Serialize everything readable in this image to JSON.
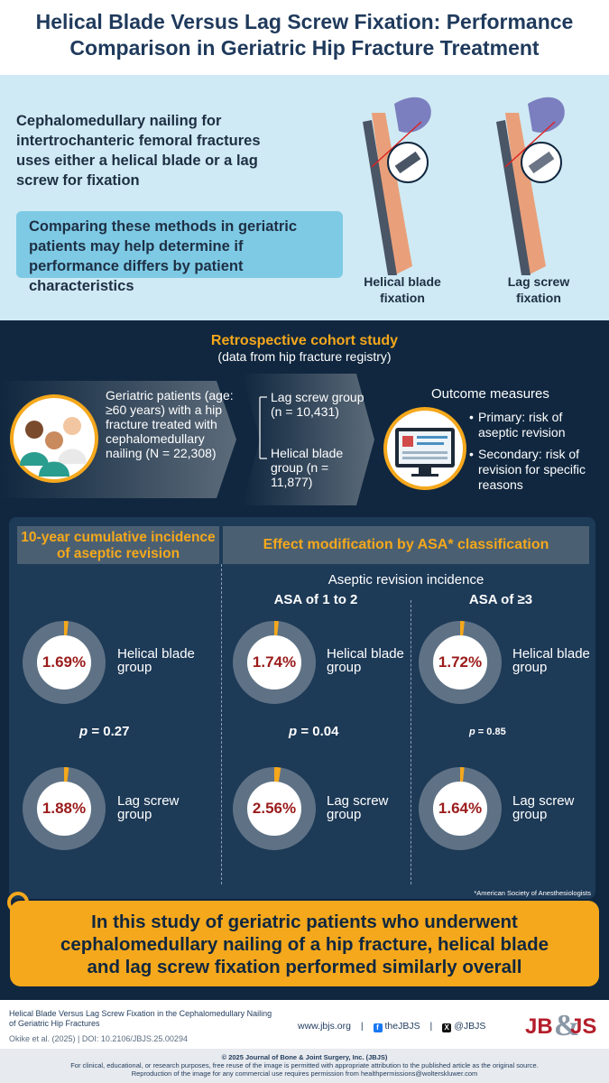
{
  "title": {
    "line1": "Helical Blade Versus Lag Screw Fixation: Performance",
    "line2": "Comparison in Geriatric Hip Fracture Treatment"
  },
  "intro": {
    "text": "Cephalomedullary nailing for intertrochanteric femoral fractures uses either a helical blade or a lag screw for fixation",
    "box": "Comparing these methods in geriatric patients may help determine if performance differs by patient characteristics",
    "label_helical": "Helical blade fixation",
    "label_lag": "Lag screw fixation"
  },
  "study": {
    "title": "Retrospective cohort study",
    "subtitle": "(data from hip fracture registry)",
    "patients": "Geriatric patients (age: ≥60 years) with a hip fracture treated with cephalomedullary nailing (N = 22,308)",
    "group_lag": "Lag screw group (n = 10,431)",
    "group_helical": "Helical blade group (n = 11,877)",
    "outcome_title": "Outcome measures",
    "outcome_primary": "Primary: risk of aseptic revision",
    "outcome_secondary": "Secondary: risk of revision for specific reasons"
  },
  "results": {
    "left_header": "10-year cumulative incidence of aseptic revision",
    "right_header": "Effect modification by ASA* classification",
    "incidence_label": "Aseptic revision incidence",
    "asa_low": "ASA of 1 to 2",
    "asa_high": "ASA of ≥3",
    "helical_label": "Helical blade group",
    "lag_label": "Lag screw group",
    "overall": {
      "helical": "1.69%",
      "lag": "1.88%",
      "p": "= 0.27"
    },
    "asa12": {
      "helical": "1.74%",
      "lag": "2.56%",
      "p": "= 0.04"
    },
    "asa3": {
      "helical": "1.72%",
      "lag": "1.64%",
      "p": "= 0.85"
    },
    "p_symbol": "p",
    "footnote": "*American Society of Anesthesiologists"
  },
  "chart_data": [
    {
      "type": "pie",
      "title": "10-year cumulative incidence of aseptic revision",
      "series": [
        {
          "name": "Helical blade group",
          "values": [
            1.69
          ]
        },
        {
          "name": "Lag screw group",
          "values": [
            1.88
          ]
        }
      ]
    },
    {
      "type": "pie",
      "title": "ASA of 1 to 2",
      "series": [
        {
          "name": "Helical blade group",
          "values": [
            1.74
          ]
        },
        {
          "name": "Lag screw group",
          "values": [
            2.56
          ]
        }
      ]
    },
    {
      "type": "pie",
      "title": "ASA of ≥3",
      "series": [
        {
          "name": "Helical blade group",
          "values": [
            1.72
          ]
        },
        {
          "name": "Lag screw group",
          "values": [
            1.64
          ]
        }
      ]
    }
  ],
  "conclusion": "In this study of geriatric patients who underwent cephalomedullary nailing of a hip fracture, helical blade and lag screw fixation performed similarly overall",
  "footer": {
    "article_title": "Helical Blade Versus Lag Screw Fixation in the Cephalomedullary Nailing of Geriatric Hip Fractures",
    "citation": "Okike et al. (2025) | DOI: 10.2106/JBJS.25.00294",
    "website": "www.jbjs.org",
    "facebook": "theJBJS",
    "x_handle": "@JBJS",
    "logo": "JB&JS",
    "copyright": "© 2025 Journal of Bone & Joint Surgery, Inc. (JBJS)",
    "notice1": "For clinical, educational, or research purposes, free reuse of the image is permitted with appropriate attribution to the published article as the original source.",
    "notice2": "Reproduction of the image for any commercial use requires permission from healthpermissions@wolterskluwer.com"
  },
  "colors": {
    "navy": "#10273f",
    "panel": "#1d3a57",
    "accent": "#f5a81c",
    "value_red": "#9b1b1b",
    "light_blue": "#cfeaf4"
  }
}
